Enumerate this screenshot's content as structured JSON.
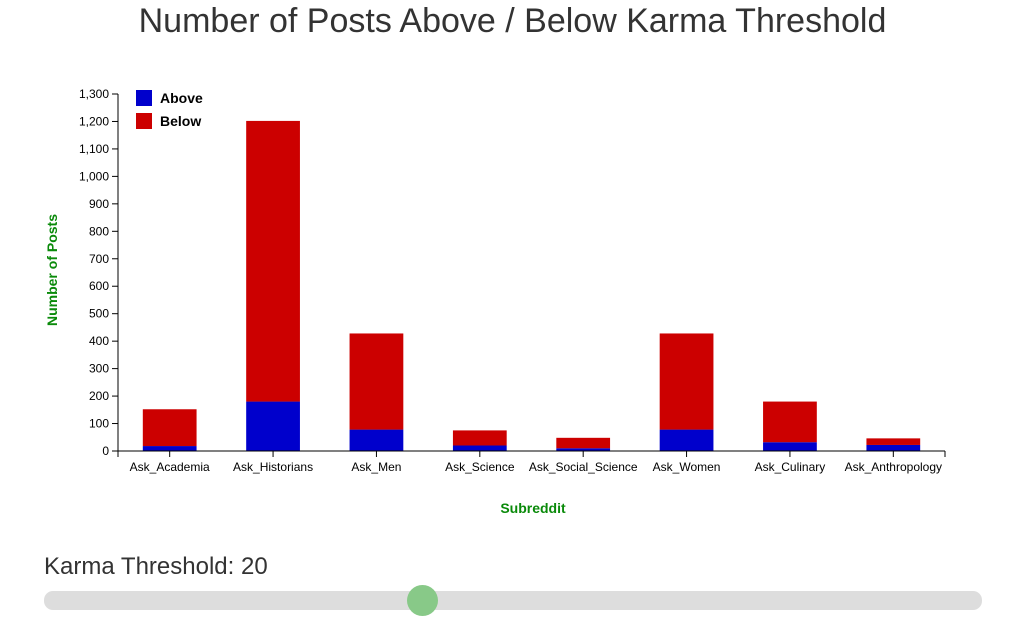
{
  "title": "Number of Posts Above / Below Karma Threshold",
  "colors": {
    "above": "#0000cc",
    "below": "#cc0000",
    "axis_title": "#0a8a0a",
    "slider_thumb": "#88c988",
    "slider_track": "#dddddd"
  },
  "chart_data": {
    "type": "bar",
    "stacked": true,
    "title": "Number of Posts Above / Below Karma Threshold",
    "xlabel": "Subreddit",
    "ylabel": "Number of Posts",
    "categories": [
      "Ask_Academia",
      "Ask_Historians",
      "Ask_Men",
      "Ask_Science",
      "Ask_Social_Science",
      "Ask_Women",
      "Ask_Culinary",
      "Ask_Anthropology"
    ],
    "series": [
      {
        "name": "Above",
        "color": "#0000cc",
        "values": [
          18,
          180,
          78,
          20,
          10,
          78,
          32,
          22
        ]
      },
      {
        "name": "Below",
        "color": "#cc0000",
        "values": [
          134,
          1022,
          350,
          55,
          38,
          350,
          148,
          24
        ]
      }
    ],
    "ylim": [
      0,
      1300
    ],
    "yticks": [
      0,
      100,
      200,
      300,
      400,
      500,
      600,
      700,
      800,
      900,
      1000,
      1100,
      1200,
      1300
    ],
    "ytick_labels": [
      "0",
      "100",
      "200",
      "300",
      "400",
      "500",
      "600",
      "700",
      "800",
      "900",
      "1,000",
      "1,100",
      "1,200",
      "1,300"
    ],
    "legend_position": "top-left",
    "grid": false
  },
  "slider": {
    "label": "Karma Threshold: 20",
    "value": 20,
    "fraction": 0.403
  }
}
